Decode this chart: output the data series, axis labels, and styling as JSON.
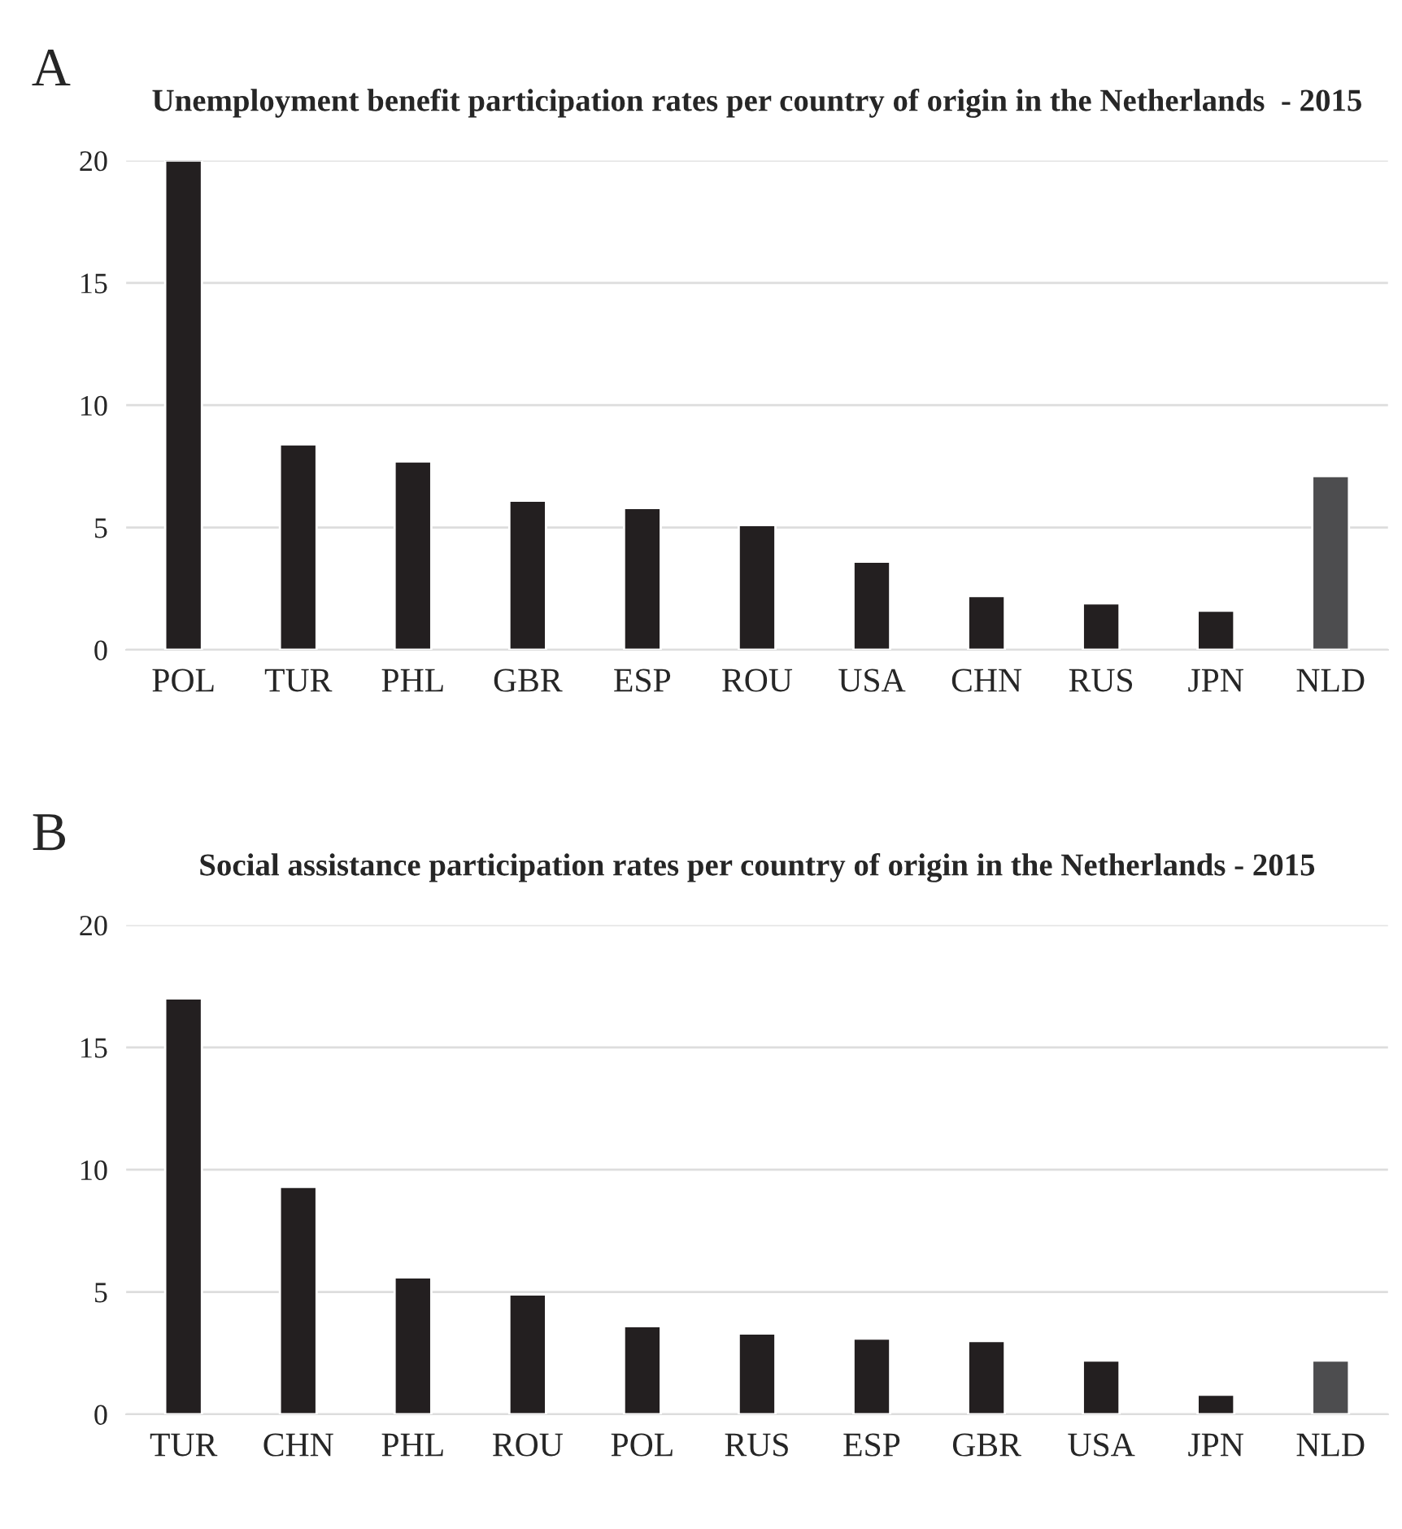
{
  "chart_data": [
    {
      "type": "bar",
      "title": "Unemployment benefit participation rates per country of origin in the Netherlands  - 2015",
      "annotations": [
        "A"
      ],
      "categories": [
        "POL",
        "TUR",
        "PHL",
        "GBR",
        "ESP",
        "ROU",
        "USA",
        "CHN",
        "RUS",
        "JPN",
        "NLD"
      ],
      "values": [
        20,
        8.4,
        7.7,
        6.1,
        5.8,
        5.1,
        3.6,
        2.2,
        1.9,
        1.6,
        7.1
      ],
      "colors": [
        "#231f20",
        "#231f20",
        "#231f20",
        "#231f20",
        "#231f20",
        "#231f20",
        "#231f20",
        "#231f20",
        "#231f20",
        "#231f20",
        "#4d4d4f"
      ],
      "ylim": [
        0,
        20
      ],
      "yticks": [
        0,
        5,
        10,
        15,
        20
      ],
      "grid": "y"
    },
    {
      "type": "bar",
      "title": "Social assistance participation rates per country of origin in the Netherlands - 2015",
      "annotations": [
        "B"
      ],
      "categories": [
        "TUR",
        "CHN",
        "PHL",
        "ROU",
        "POL",
        "RUS",
        "ESP",
        "GBR",
        "USA",
        "JPN",
        "NLD"
      ],
      "values": [
        17,
        9.3,
        5.6,
        4.9,
        3.6,
        3.3,
        3.1,
        3.0,
        2.2,
        0.8,
        2.2
      ],
      "colors": [
        "#231f20",
        "#231f20",
        "#231f20",
        "#231f20",
        "#231f20",
        "#231f20",
        "#231f20",
        "#231f20",
        "#231f20",
        "#231f20",
        "#4d4d4f"
      ],
      "ylim": [
        0,
        20
      ],
      "yticks": [
        0,
        5,
        10,
        15,
        20
      ],
      "grid": "y"
    }
  ]
}
